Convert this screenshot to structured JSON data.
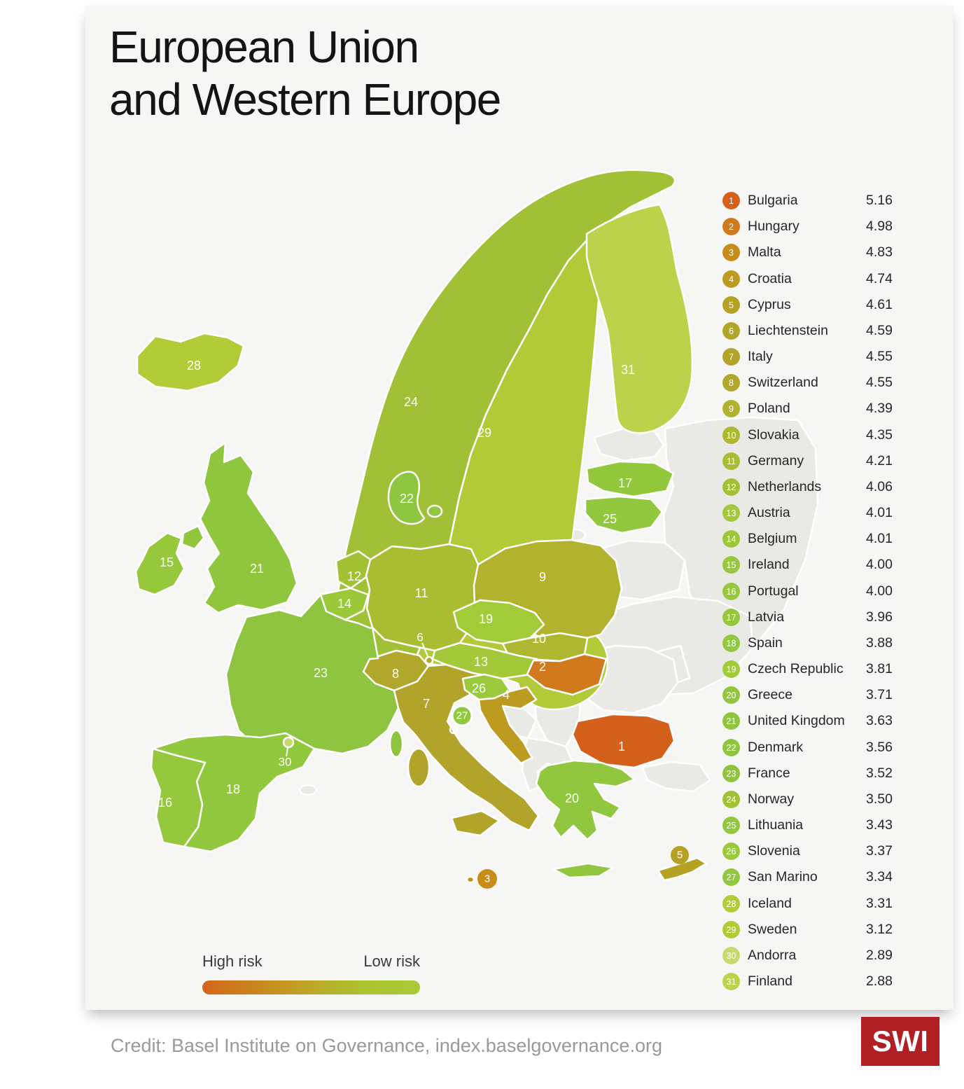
{
  "title": {
    "lines": [
      "European Union",
      "and Western Europe"
    ]
  },
  "legend": {
    "high_label": "High risk",
    "low_label": "Low risk",
    "gradient": [
      "#d4651c",
      "#c9861d",
      "#bda726",
      "#abc430",
      "#a9c935"
    ]
  },
  "credit": "Credit: Basel Institute on Governance, index.baselgovernance.org",
  "logo": {
    "text": "SWI",
    "background": "#b01f24",
    "color": "#ffffff"
  },
  "chart_data": {
    "type": "choropleth_map",
    "title": "European Union and Western Europe",
    "metric": "risk score",
    "no_data_color": "#e9e9e6",
    "legend": {
      "left": "High risk",
      "right": "Low risk"
    },
    "countries": [
      {
        "rank": 1,
        "name": "Bulgaria",
        "score": "5.16",
        "color": "#d4601c"
      },
      {
        "rank": 2,
        "name": "Hungary",
        "score": "4.98",
        "color": "#d1791d"
      },
      {
        "rank": 3,
        "name": "Malta",
        "score": "4.83",
        "color": "#c78d17"
      },
      {
        "rank": 4,
        "name": "Croatia",
        "score": "4.74",
        "color": "#bd9a20"
      },
      {
        "rank": 5,
        "name": "Cyprus",
        "score": "4.61",
        "color": "#b5a124"
      },
      {
        "rank": 6,
        "name": "Liechtenstein",
        "score": "4.59",
        "color": "#b3a527"
      },
      {
        "rank": 7,
        "name": "Italy",
        "score": "4.55",
        "color": "#b2a42a"
      },
      {
        "rank": 8,
        "name": "Switzerland",
        "score": "4.55",
        "color": "#b0a72b"
      },
      {
        "rank": 9,
        "name": "Poland",
        "score": "4.39",
        "color": "#b2b22e"
      },
      {
        "rank": 10,
        "name": "Slovakia",
        "score": "4.35",
        "color": "#aeb730"
      },
      {
        "rank": 11,
        "name": "Germany",
        "score": "4.21",
        "color": "#aabc32"
      },
      {
        "rank": 12,
        "name": "Netherlands",
        "score": "4.06",
        "color": "#a3c135"
      },
      {
        "rank": 13,
        "name": "Austria",
        "score": "4.01",
        "color": "#a3c93a"
      },
      {
        "rank": 14,
        "name": "Belgium",
        "score": "4.01",
        "color": "#9bc839"
      },
      {
        "rank": 15,
        "name": "Ireland",
        "score": "4.00",
        "color": "#97c83b"
      },
      {
        "rank": 16,
        "name": "Portugal",
        "score": "4.00",
        "color": "#95c83c"
      },
      {
        "rank": 17,
        "name": "Latvia",
        "score": "3.96",
        "color": "#93c83d"
      },
      {
        "rank": 18,
        "name": "Spain",
        "score": "3.88",
        "color": "#91c83d"
      },
      {
        "rank": 19,
        "name": "Czech Republic",
        "score": "3.81",
        "color": "#a2cb39"
      },
      {
        "rank": 20,
        "name": "Greece",
        "score": "3.71",
        "color": "#90c73e"
      },
      {
        "rank": 21,
        "name": "United Kingdom",
        "score": "3.63",
        "color": "#8fc63e"
      },
      {
        "rank": 22,
        "name": "Denmark",
        "score": "3.56",
        "color": "#8ec63f"
      },
      {
        "rank": 23,
        "name": "France",
        "score": "3.52",
        "color": "#8ec43f"
      },
      {
        "rank": 24,
        "name": "Norway",
        "score": "3.50",
        "color": "#a0c136"
      },
      {
        "rank": 25,
        "name": "Lithuania",
        "score": "3.43",
        "color": "#92c83d"
      },
      {
        "rank": 26,
        "name": "Slovenia",
        "score": "3.37",
        "color": "#9aca3c"
      },
      {
        "rank": 27,
        "name": "San Marino",
        "score": "3.34",
        "color": "#90c83e"
      },
      {
        "rank": 28,
        "name": "Iceland",
        "score": "3.31",
        "color": "#b1cc37"
      },
      {
        "rank": 29,
        "name": "Sweden",
        "score": "3.12",
        "color": "#b3ca38"
      },
      {
        "rank": 30,
        "name": "Andorra",
        "score": "2.89",
        "color": "#c7d96b"
      },
      {
        "rank": 31,
        "name": "Finland",
        "score": "2.88",
        "color": "#bdd24b"
      }
    ]
  }
}
